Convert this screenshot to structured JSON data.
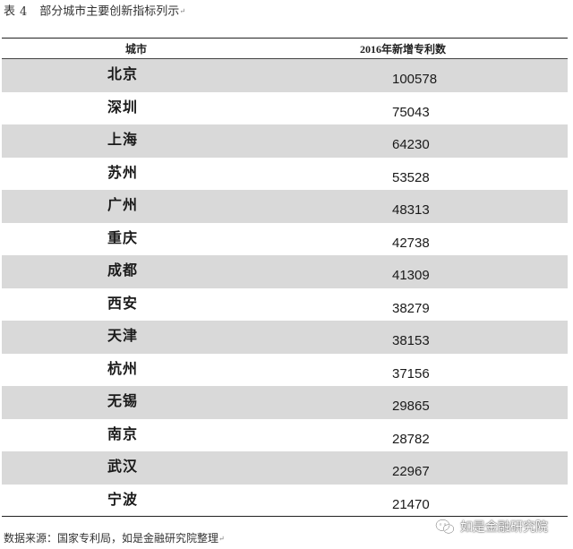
{
  "caption": {
    "label": "表",
    "number": "4",
    "title": "部分城市主要创新指标列示"
  },
  "table": {
    "headers": [
      "城市",
      "2016年新增专利数"
    ],
    "rows": [
      {
        "city": "北京",
        "value": "100578"
      },
      {
        "city": "深圳",
        "value": "75043"
      },
      {
        "city": "上海",
        "value": "64230"
      },
      {
        "city": "苏州",
        "value": "53528"
      },
      {
        "city": "广州",
        "value": "48313"
      },
      {
        "city": "重庆",
        "value": "42738"
      },
      {
        "city": "成都",
        "value": "41309"
      },
      {
        "city": "西安",
        "value": "38279"
      },
      {
        "city": "天津",
        "value": "38153"
      },
      {
        "city": "杭州",
        "value": "37156"
      },
      {
        "city": "无锡",
        "value": "29865"
      },
      {
        "city": "南京",
        "value": "28782"
      },
      {
        "city": "武汉",
        "value": "22967"
      },
      {
        "city": "宁波",
        "value": "21470"
      }
    ]
  },
  "source": "数据来源：国家专利局，如是金融研究院整理",
  "watermark": {
    "text": "如是金融研究院",
    "icon": "wechat-icon"
  },
  "colors": {
    "shaded_row": "#d9d9d9",
    "rule": "#222222"
  }
}
